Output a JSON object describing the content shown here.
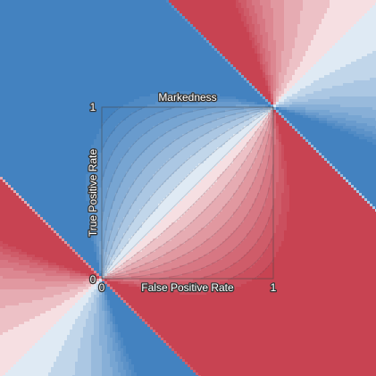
{
  "chart_data": {
    "type": "area",
    "title": "Markedness",
    "xlabel": "False Positive Rate",
    "ylabel": "True Positive Rate",
    "xlim": [
      0,
      1
    ],
    "ylim": [
      0,
      1
    ],
    "x_ticks": [
      "0",
      "1"
    ],
    "y_ticks": [
      "0",
      "1"
    ],
    "grid": false,
    "legend": "none",
    "colors": {
      "positive": "#3d7ebe",
      "negative": "#c63d4d",
      "neutral": "#ffffff"
    },
    "contour_levels": [
      -0.9,
      -0.8,
      -0.7,
      -0.6,
      -0.5,
      -0.4,
      -0.3,
      -0.2,
      -0.1,
      0,
      0.1,
      0.2,
      0.3,
      0.4,
      0.5,
      0.6,
      0.7,
      0.8,
      0.9
    ]
  }
}
